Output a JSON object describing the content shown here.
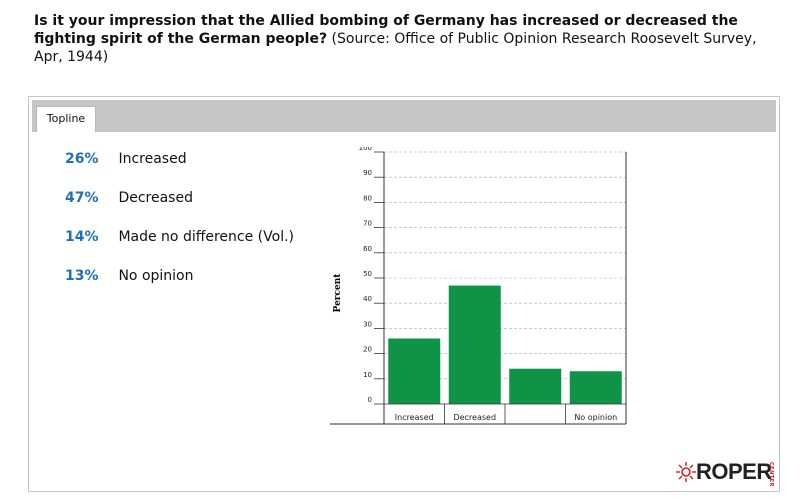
{
  "question": {
    "text": "Is it your impression that the Allied bombing of Germany has increased or decreased the fighting spirit of the German people?",
    "source": "(Source: Office of Public Opinion Research Roosevelt Survey, Apr, 1944)"
  },
  "tabs": [
    {
      "label": "Topline"
    }
  ],
  "results": [
    {
      "pct": "26%",
      "label": "Increased"
    },
    {
      "pct": "47%",
      "label": "Decreased"
    },
    {
      "pct": "14%",
      "label": "Made no difference (Vol.)"
    },
    {
      "pct": "13%",
      "label": "No opinion"
    }
  ],
  "colors": {
    "bar": "#0f9447",
    "pct_text": "#1f6fb5",
    "tabbar": "#c6c6c6"
  },
  "logo": {
    "word": "ROPER",
    "side": "CENTER"
  },
  "chart_data": {
    "type": "bar",
    "categories": [
      "Increased",
      "Decreased",
      "",
      "No opinion"
    ],
    "values": [
      26,
      47,
      14,
      13
    ],
    "ylabel": "Percent",
    "ylim": [
      0,
      100
    ],
    "yticks": [
      0,
      10,
      20,
      30,
      40,
      50,
      60,
      70,
      80,
      90,
      100
    ],
    "grid": true,
    "title": "",
    "xlabel": ""
  }
}
